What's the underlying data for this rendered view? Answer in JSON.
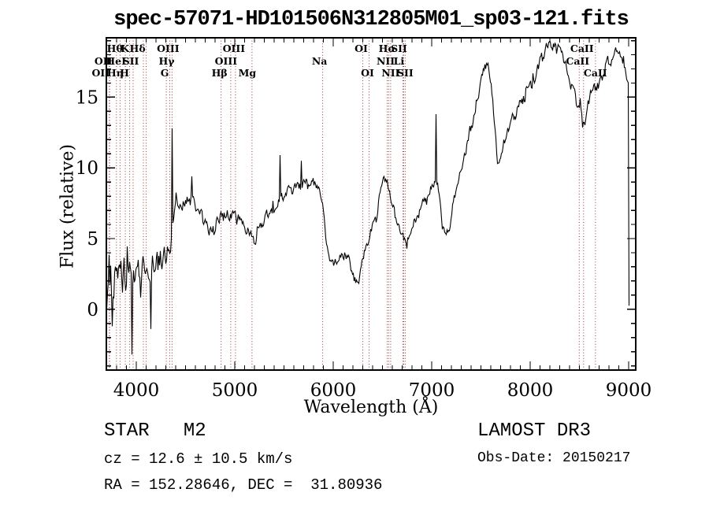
{
  "header": {
    "title": "spec-57071-HD101506N312805M01_sp03-121.fits"
  },
  "footer": {
    "classification": "STAR   M2",
    "cz": "cz = 12.6 ± 10.5 km/s",
    "radec": "RA = 152.28646, DEC =  31.80936",
    "survey": "LAMOST DR3",
    "obs_date": "Obs-Date: 20150217"
  },
  "chart_data": {
    "type": "line",
    "title": "spec-57071-HD101506N312805M01_sp03-121.fits",
    "xlabel": "Wavelength (Å)",
    "ylabel": "Flux (relative)",
    "xlim": [
      3696,
      9072
    ],
    "ylim": [
      -4.3,
      19.2
    ],
    "xticks": [
      4000,
      5000,
      6000,
      7000,
      8000,
      9000
    ],
    "yticks": [
      0,
      5,
      10,
      15
    ],
    "x_minor_step": 100,
    "y_minor_step": 1,
    "grid": false,
    "legend": "none",
    "line_color": "#000000",
    "marker_line_color": "#993333",
    "series": [
      {
        "name": "flux",
        "points": [
          [
            3700,
            1.5
          ],
          [
            3760,
            1.7
          ],
          [
            3820,
            1.9
          ],
          [
            3880,
            2.0
          ],
          [
            3940,
            2.2
          ],
          [
            4000,
            2.5
          ],
          [
            4060,
            2.8
          ],
          [
            4120,
            3.1
          ],
          [
            4180,
            3.4
          ],
          [
            4240,
            3.6
          ],
          [
            4300,
            4.0
          ],
          [
            4340,
            4.4
          ],
          [
            4370,
            5.8
          ],
          [
            4400,
            6.6
          ],
          [
            4450,
            7.2
          ],
          [
            4500,
            7.5
          ],
          [
            4550,
            7.7
          ],
          [
            4590,
            7.5
          ],
          [
            4640,
            6.8
          ],
          [
            4700,
            6.0
          ],
          [
            4750,
            5.7
          ],
          [
            4800,
            6.2
          ],
          [
            4860,
            6.8
          ],
          [
            4910,
            6.8
          ],
          [
            4960,
            6.6
          ],
          [
            5010,
            6.6
          ],
          [
            5060,
            6.2
          ],
          [
            5110,
            5.8
          ],
          [
            5160,
            5.2
          ],
          [
            5200,
            4.9
          ],
          [
            5260,
            5.7
          ],
          [
            5320,
            6.5
          ],
          [
            5400,
            7.3
          ],
          [
            5480,
            7.9
          ],
          [
            5560,
            8.3
          ],
          [
            5640,
            8.5
          ],
          [
            5720,
            8.8
          ],
          [
            5800,
            8.9
          ],
          [
            5860,
            8.4
          ],
          [
            5900,
            7.2
          ],
          [
            5925,
            5.0
          ],
          [
            5955,
            3.6
          ],
          [
            5995,
            3.1
          ],
          [
            6035,
            3.4
          ],
          [
            6085,
            3.9
          ],
          [
            6125,
            4.1
          ],
          [
            6165,
            3.3
          ],
          [
            6205,
            2.4
          ],
          [
            6240,
            1.8
          ],
          [
            6270,
            2.4
          ],
          [
            6305,
            3.5
          ],
          [
            6335,
            4.4
          ],
          [
            6365,
            5.2
          ],
          [
            6405,
            6.1
          ],
          [
            6450,
            7.2
          ],
          [
            6490,
            8.6
          ],
          [
            6520,
            9.3
          ],
          [
            6545,
            9.0
          ],
          [
            6565,
            8.3
          ],
          [
            6595,
            7.5
          ],
          [
            6635,
            6.5
          ],
          [
            6675,
            5.6
          ],
          [
            6705,
            5.1
          ],
          [
            6730,
            4.9
          ],
          [
            6765,
            5.3
          ],
          [
            6805,
            5.9
          ],
          [
            6855,
            6.6
          ],
          [
            6905,
            7.3
          ],
          [
            6955,
            8.1
          ],
          [
            7005,
            8.8
          ],
          [
            7030,
            9.3
          ],
          [
            7060,
            8.9
          ],
          [
            7090,
            7.2
          ],
          [
            7125,
            5.4
          ],
          [
            7150,
            5.3
          ],
          [
            7175,
            6.0
          ],
          [
            7205,
            7.0
          ],
          [
            7255,
            8.5
          ],
          [
            7305,
            10.0
          ],
          [
            7365,
            11.8
          ],
          [
            7425,
            13.5
          ],
          [
            7485,
            15.5
          ],
          [
            7535,
            17.0
          ],
          [
            7565,
            17.6
          ],
          [
            7595,
            16.6
          ],
          [
            7625,
            14.3
          ],
          [
            7655,
            11.3
          ],
          [
            7668,
            10.3
          ],
          [
            7690,
            10.7
          ],
          [
            7715,
            11.3
          ],
          [
            7755,
            12.2
          ],
          [
            7805,
            13.1
          ],
          [
            7865,
            14.1
          ],
          [
            7925,
            14.8
          ],
          [
            7985,
            15.5
          ],
          [
            8045,
            16.3
          ],
          [
            8095,
            17.3
          ],
          [
            8145,
            18.4
          ],
          [
            8185,
            18.8
          ],
          [
            8225,
            18.9
          ],
          [
            8265,
            18.5
          ],
          [
            8305,
            18.1
          ],
          [
            8345,
            17.5
          ],
          [
            8395,
            16.4
          ],
          [
            8445,
            15.4
          ],
          [
            8478,
            14.5
          ],
          [
            8502,
            13.9
          ],
          [
            8522,
            14.2
          ],
          [
            8545,
            13.7
          ],
          [
            8572,
            14.4
          ],
          [
            8612,
            15.2
          ],
          [
            8642,
            15.4
          ],
          [
            8668,
            15.2
          ],
          [
            8705,
            16.0
          ],
          [
            8755,
            17.1
          ],
          [
            8805,
            17.9
          ],
          [
            8855,
            18.3
          ],
          [
            8895,
            18.3
          ],
          [
            8935,
            17.6
          ],
          [
            8965,
            17.0
          ],
          [
            8995,
            16.7
          ]
        ]
      }
    ],
    "noise_profile": [
      [
        3700,
        1.7
      ],
      [
        3850,
        1.4
      ],
      [
        4000,
        1.1
      ],
      [
        4150,
        0.9
      ],
      [
        4300,
        0.7
      ],
      [
        4450,
        0.55
      ],
      [
        4700,
        0.4
      ],
      [
        5000,
        0.35
      ],
      [
        5500,
        0.35
      ],
      [
        5900,
        0.3
      ],
      [
        6300,
        0.35
      ],
      [
        6600,
        0.3
      ],
      [
        7000,
        0.35
      ],
      [
        7400,
        0.35
      ],
      [
        7800,
        0.4
      ],
      [
        8200,
        0.4
      ],
      [
        8600,
        0.45
      ],
      [
        9000,
        0.5
      ]
    ],
    "spikes": [
      [
        3755,
        -1.2
      ],
      [
        3958,
        -3.2
      ],
      [
        4148,
        -1.4
      ],
      [
        4360,
        12.8
      ],
      [
        4560,
        9.4
      ],
      [
        5456,
        10.9
      ],
      [
        5672,
        10.5
      ],
      [
        7040,
        13.8
      ],
      [
        9001,
        0.25
      ]
    ],
    "line_markers": [
      {
        "label": "OII",
        "wavelength": 3726,
        "row": 3,
        "dx": -11
      },
      {
        "label": "OII",
        "wavelength": 3729,
        "row": 2,
        "dx": -8
      },
      {
        "label": "Hθ",
        "wavelength": 3798,
        "row": 1,
        "dx": -2
      },
      {
        "label": "Hη",
        "wavelength": 3835,
        "row": 3,
        "dx": -6
      },
      {
        "label": "HeI",
        "wavelength": 3889,
        "row": 2,
        "dx": -12
      },
      {
        "label": "K",
        "wavelength": 3933,
        "row": 1,
        "dx": -6
      },
      {
        "label": "H",
        "wavelength": 3968,
        "row": 3,
        "dx": -11
      },
      {
        "label": "SII",
        "wavelength": 4072,
        "row": 2,
        "dx": -16
      },
      {
        "label": "Hδ",
        "wavelength": 4101,
        "row": 1,
        "dx": -11
      },
      {
        "label": "G",
        "wavelength": 4305,
        "row": 3,
        "dx": -2
      },
      {
        "label": "Hγ",
        "wavelength": 4340,
        "row": 2,
        "dx": -4
      },
      {
        "label": "OIII",
        "wavelength": 4363,
        "row": 1,
        "dx": -5
      },
      {
        "label": "Hβ",
        "wavelength": 4861,
        "row": 3,
        "dx": -2
      },
      {
        "label": "OIII",
        "wavelength": 4959,
        "row": 2,
        "dx": -6
      },
      {
        "label": "OIII",
        "wavelength": 5007,
        "row": 1,
        "dx": -2
      },
      {
        "label": "Mg",
        "wavelength": 5175,
        "row": 3,
        "dx": -6
      },
      {
        "label": "Na",
        "wavelength": 5893,
        "row": 2,
        "dx": -4
      },
      {
        "label": "OI",
        "wavelength": 6300,
        "row": 1,
        "dx": -2
      },
      {
        "label": "OI",
        "wavelength": 6364,
        "row": 3,
        "dx": -2
      },
      {
        "label": "NII",
        "wavelength": 6548,
        "row": 2,
        "dx": -2
      },
      {
        "label": "Hα",
        "wavelength": 6563,
        "row": 1,
        "dx": -2
      },
      {
        "label": "NII",
        "wavelength": 6583,
        "row": 3,
        "dx": 0
      },
      {
        "label": "Li",
        "wavelength": 6707,
        "row": 2,
        "dx": -5
      },
      {
        "label": "SII",
        "wavelength": 6716,
        "row": 1,
        "dx": -6
      },
      {
        "label": "SII",
        "wavelength": 6731,
        "row": 3,
        "dx": 0
      },
      {
        "label": "CaII",
        "wavelength": 8498,
        "row": 2,
        "dx": -2
      },
      {
        "label": "CaII",
        "wavelength": 8542,
        "row": 1,
        "dx": -2
      },
      {
        "label": "CaII",
        "wavelength": 8662,
        "row": 3,
        "dx": 0
      }
    ]
  }
}
